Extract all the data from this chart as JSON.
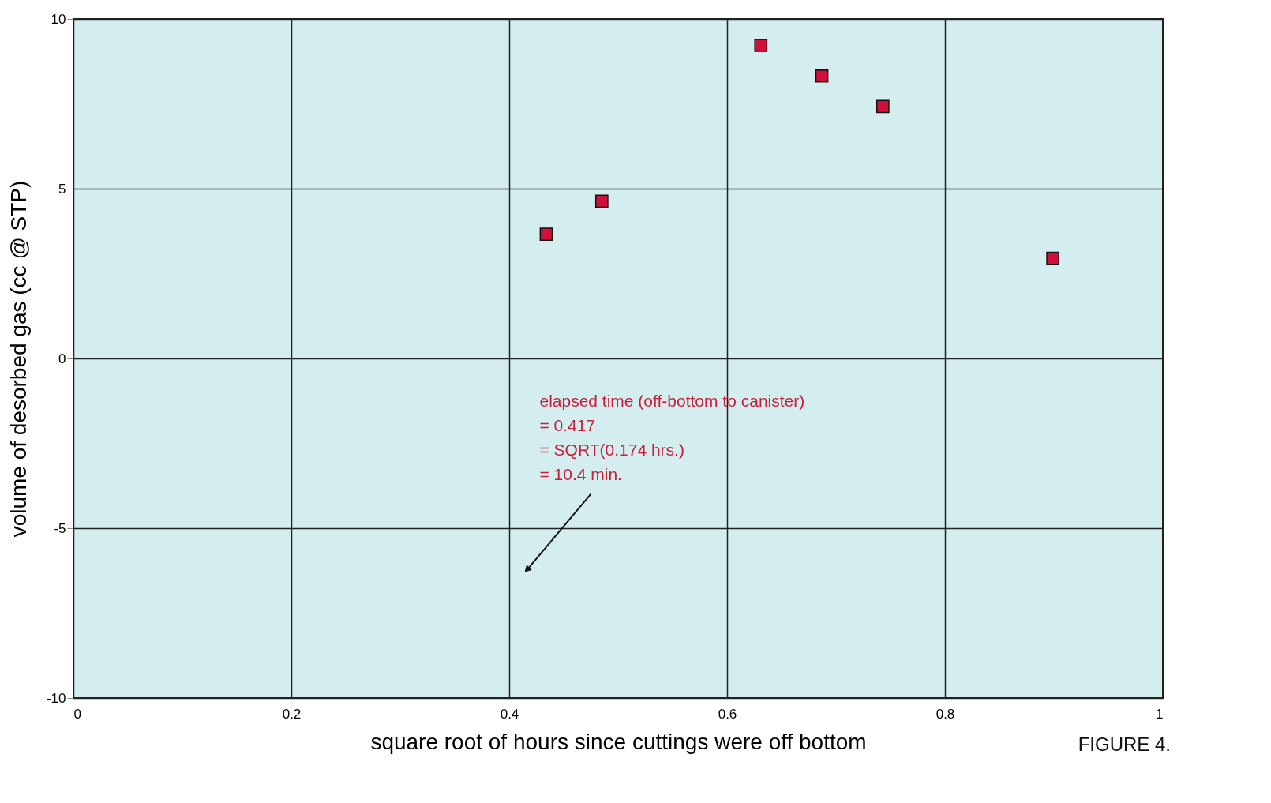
{
  "chart_data": {
    "type": "scatter",
    "xlabel": "square root of hours since cuttings were off bottom",
    "ylabel": "volume of desorbed gas (cc @ STP)",
    "x": [
      0.434,
      0.485,
      0.631,
      0.687,
      0.743,
      0.899
    ],
    "series": [
      {
        "color": "#d0103a",
        "values": [
          3.66,
          4.63,
          9.22,
          8.32,
          7.42,
          2.95
        ]
      }
    ],
    "marker": "square",
    "xlim": [
      0,
      1
    ],
    "xticks": [
      0,
      0.2,
      0.4,
      0.6,
      0.8,
      1
    ],
    "ylim": [
      -10,
      10
    ],
    "yticks": [
      -10,
      -5,
      0,
      5,
      10
    ],
    "grid": true,
    "annotations": [
      {
        "text": "elapsed time (off-bottom to canister)\n= 0.417\n= SQRT(0.174 hrs.)\n= 10.4 min.",
        "x": 0.417,
        "y": -6.2
      },
      "FIGURE 4."
    ]
  }
}
